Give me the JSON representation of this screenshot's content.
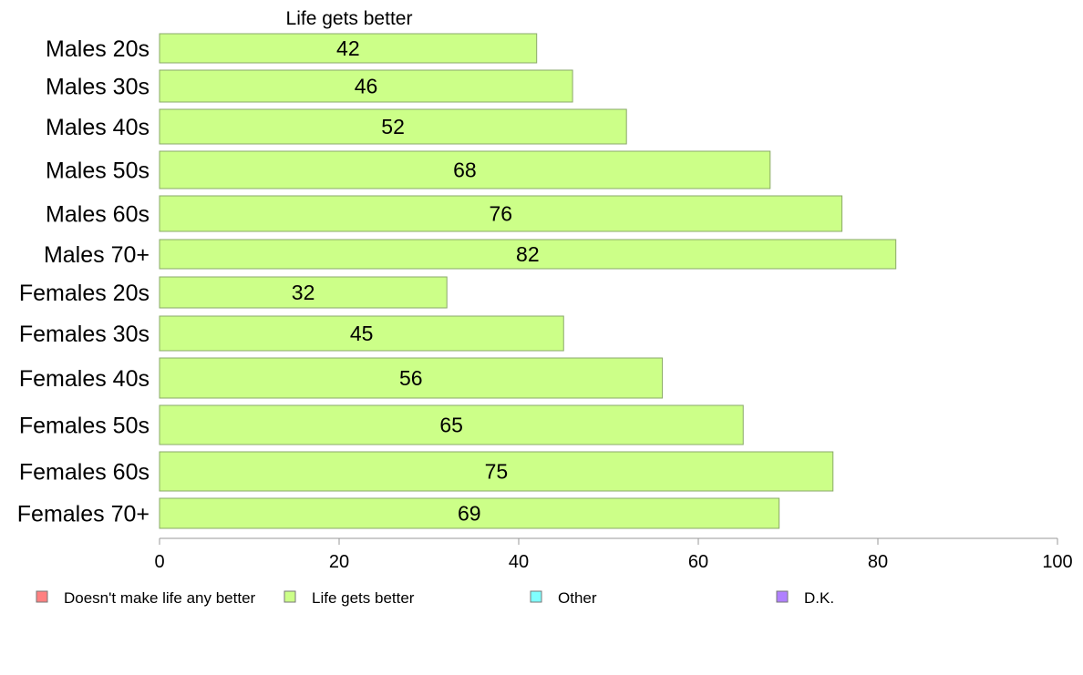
{
  "chart_data": {
    "type": "bar",
    "orientation": "horizontal",
    "title": "Life gets better",
    "categories": [
      "Males 20s",
      "Males 30s",
      "Males 40s",
      "Males 50s",
      "Males 60s",
      "Males 70+",
      "Females 20s",
      "Females 30s",
      "Females 40s",
      "Females 50s",
      "Females 60s",
      "Females 70+"
    ],
    "series": [
      {
        "name": "Life gets better",
        "color": "#ccff88",
        "values": [
          42,
          46,
          52,
          68,
          76,
          82,
          32,
          45,
          56,
          65,
          75,
          69
        ]
      }
    ],
    "xlim": [
      0,
      100
    ],
    "xticks": [
      0,
      20,
      40,
      60,
      80,
      100
    ],
    "grid": false,
    "legend": {
      "placement": "bottom",
      "entries": [
        {
          "label": "Doesn't make life any better",
          "color": "#ff8080"
        },
        {
          "label": "Life gets better",
          "color": "#ccff88"
        },
        {
          "label": "Other",
          "color": "#80ffff"
        },
        {
          "label": "D.K.",
          "color": "#b080ff"
        }
      ]
    },
    "bar_stroke_color": "#8aa86a",
    "axis_color": "#999999"
  }
}
